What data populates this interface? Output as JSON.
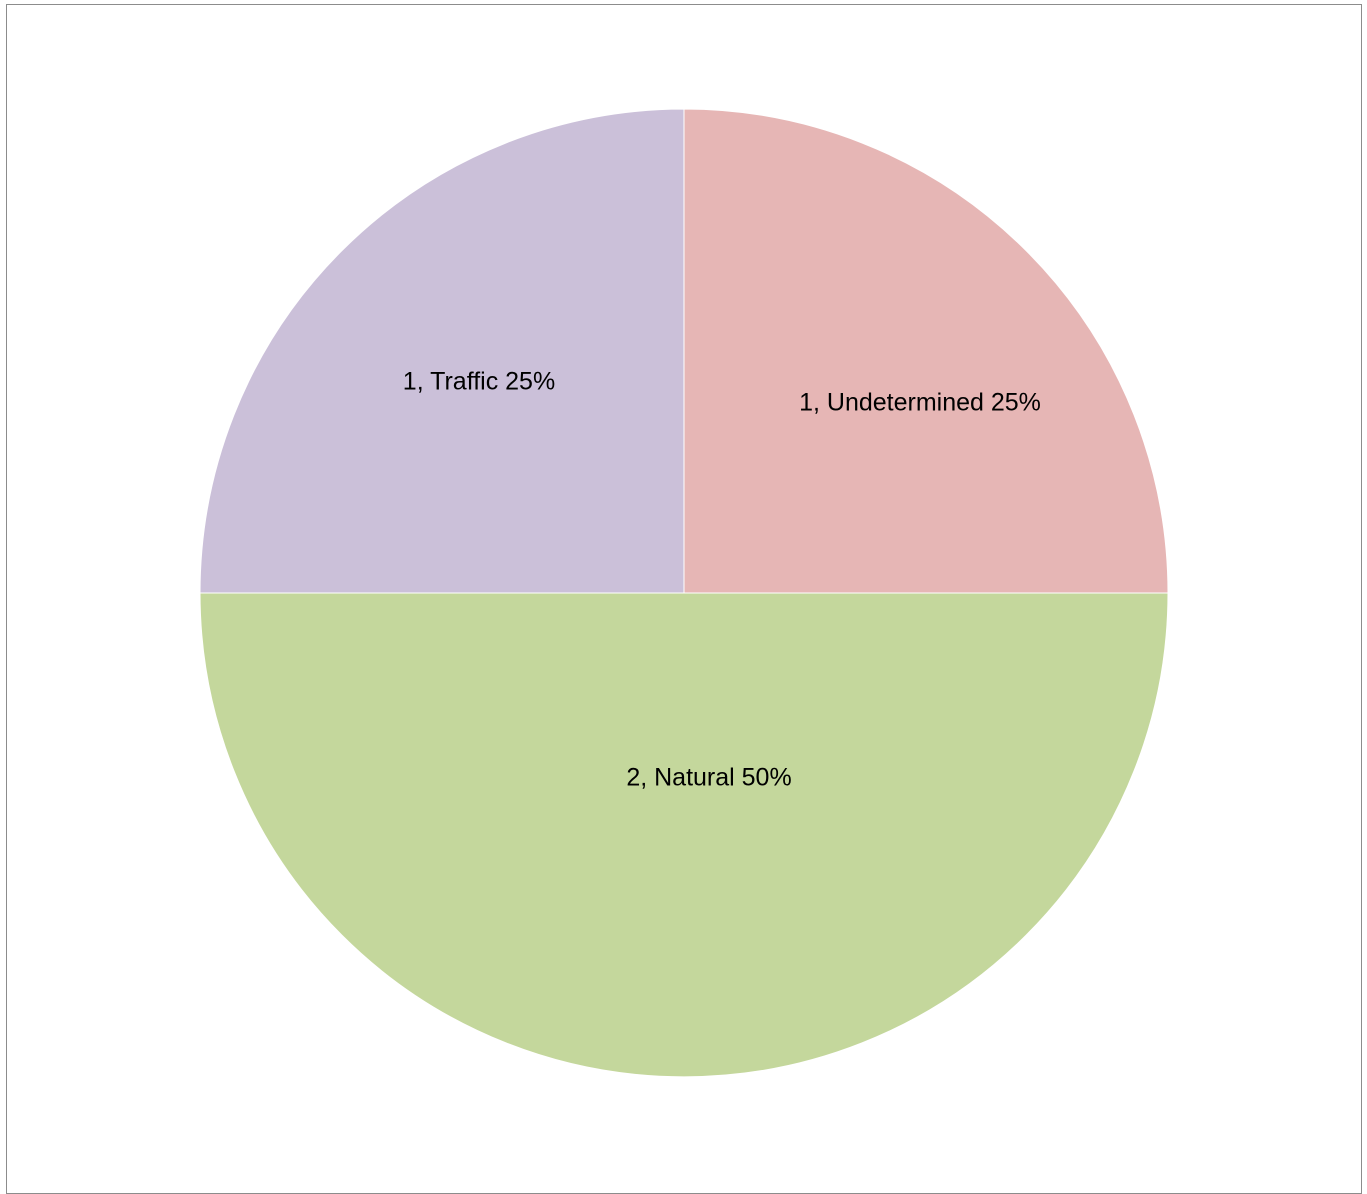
{
  "chart_data": {
    "type": "pie",
    "title": "",
    "start_angle_deg": 0,
    "direction": "clockwise",
    "slices": [
      {
        "category": "Undetermined",
        "value": 1,
        "percent": 25,
        "label": "1, Undetermined 25%",
        "color": "#e6b6b5"
      },
      {
        "category": "Natural",
        "value": 2,
        "percent": 50,
        "label": "2, Natural 50%",
        "color": "#c4d79c"
      },
      {
        "category": "Traffic",
        "value": 1,
        "percent": 25,
        "label": "1, Traffic 25%",
        "color": "#cbc0d9"
      }
    ],
    "legend": "none",
    "data_labels": "inside"
  }
}
